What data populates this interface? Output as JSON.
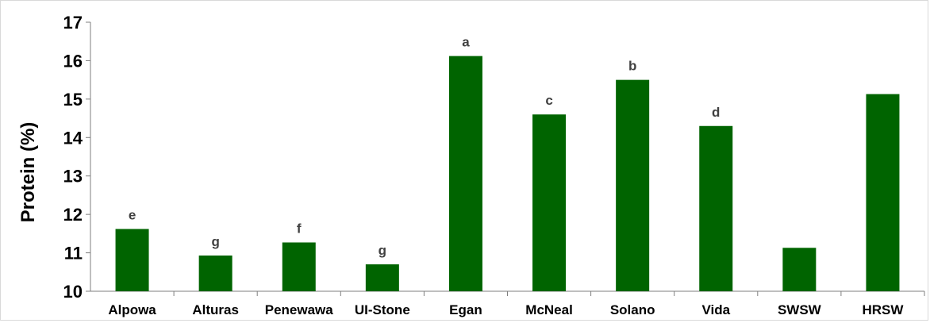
{
  "chart_data": {
    "type": "bar",
    "title": "",
    "xlabel": "",
    "ylabel": "Protein (%)",
    "ylim": [
      10,
      17
    ],
    "yticks": [
      10,
      11,
      12,
      13,
      14,
      15,
      16,
      17
    ],
    "grid": false,
    "legend": "none",
    "bar_color": "#006400",
    "categories": [
      "Alpowa",
      "Alturas",
      "Penewawa",
      "UI-Stone",
      "Egan",
      "McNeal",
      "Solano",
      "Vida",
      "SWSW",
      "HRSW"
    ],
    "values": [
      11.62,
      10.93,
      11.27,
      10.7,
      16.12,
      14.6,
      15.5,
      14.3,
      11.13,
      15.13
    ],
    "labels": [
      "e",
      "g",
      "f",
      "g",
      "a",
      "c",
      "b",
      "d",
      "",
      ""
    ]
  }
}
